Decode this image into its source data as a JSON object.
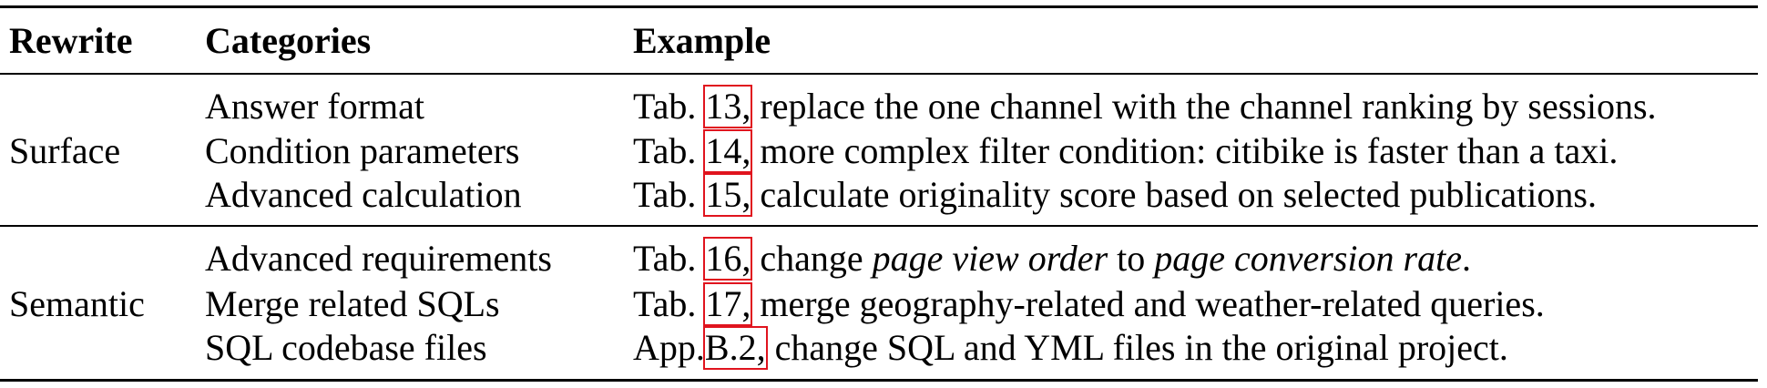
{
  "header": {
    "rewrite": "Rewrite",
    "categories": "Categories",
    "example": "Example"
  },
  "groups": [
    {
      "rewrite": "Surface",
      "rows": [
        {
          "category": "Answer format",
          "prefix": "Tab. ",
          "ref": "13,",
          "text": " replace the one channel with the channel ranking by sessions."
        },
        {
          "category": "Condition parameters",
          "prefix": "Tab. ",
          "ref": "14,",
          "text": " more complex filter condition: citibike is faster than a taxi."
        },
        {
          "category": "Advanced calculation",
          "prefix": "Tab. ",
          "ref": "15,",
          "text": " calculate originality score based on selected publications."
        }
      ]
    },
    {
      "rewrite": "Semantic",
      "rows": [
        {
          "category": "Advanced requirements",
          "prefix": "Tab. ",
          "ref": "16,",
          "text_a": " change ",
          "italic_a": "page view order",
          "text_b": " to ",
          "italic_b": "page conversion rate",
          "text_c": "."
        },
        {
          "category": "Merge related SQLs",
          "prefix": "Tab. ",
          "ref": "17,",
          "text": " merge geography-related and weather-related queries."
        },
        {
          "category": "SQL codebase files",
          "prefix": "App.",
          "ref": "B.2,",
          "text": " change SQL and YML files in the original project."
        }
      ]
    }
  ],
  "colors": {
    "ref_box": "#e0141e",
    "text": "#000000"
  }
}
